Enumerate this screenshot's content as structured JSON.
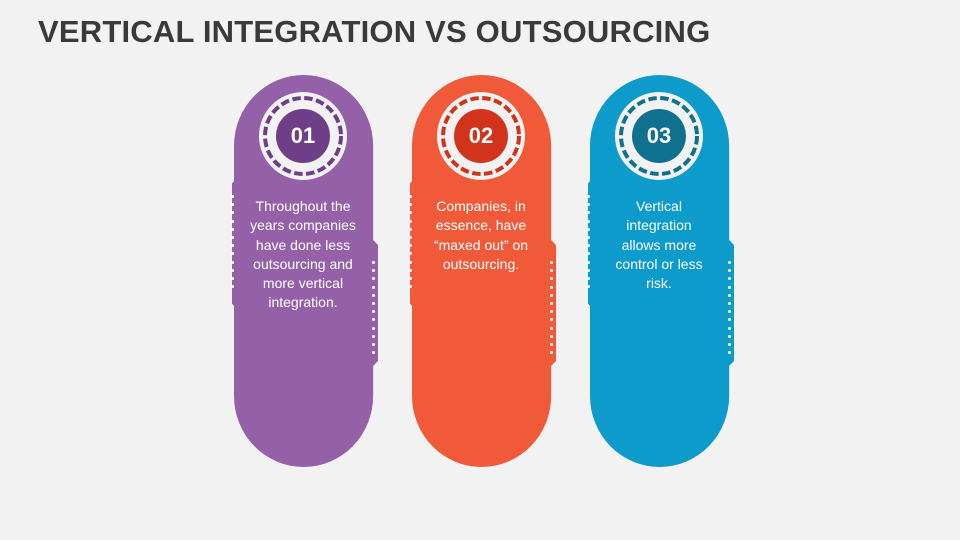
{
  "slide": {
    "title": "VERTICAL INTEGRATION VS OUTSOURCING"
  },
  "colors": {
    "background": "#f2f2f2",
    "title": "#3a3a3a",
    "card_1": "#9460a8",
    "card_1_badge": "#6e3f86",
    "card_2": "#f05a38",
    "card_2_badge": "#d1341b",
    "card_3": "#0c9bcb",
    "card_3_badge": "#10718f"
  },
  "cards": [
    {
      "number": "01",
      "text": "Throughout the years companies have done less outsourcing and more vertical integration."
    },
    {
      "number": "02",
      "text": "Companies, in essence, have “maxed out” on outsourcing."
    },
    {
      "number": "03",
      "text": "Vertical integration allows more control or less risk."
    }
  ]
}
